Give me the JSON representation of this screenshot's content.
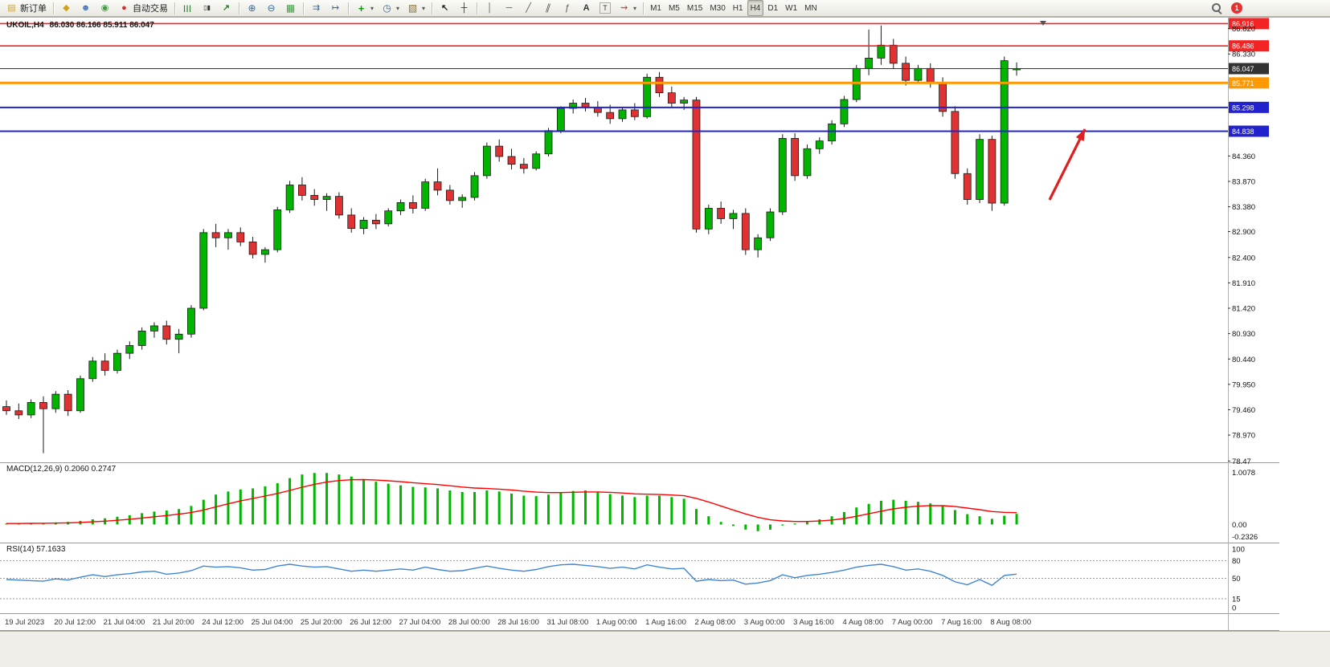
{
  "toolbar": {
    "groups": [
      {
        "items": [
          {
            "name": "new-order",
            "icon": "new-order-icon",
            "label": "新订单"
          }
        ]
      },
      {
        "items": [
          {
            "name": "charts-list",
            "icon": "gold-chart-icon"
          },
          {
            "name": "profiles",
            "icon": "profile-icon"
          },
          {
            "name": "connection",
            "icon": "signal-icon"
          },
          {
            "name": "auto-trading",
            "icon": "autotrade-icon",
            "label": "自动交易"
          }
        ]
      },
      {
        "items": [
          {
            "name": "bar-chart-mode",
            "icon": "bar-chart-icon"
          },
          {
            "name": "candle-chart-mode",
            "icon": "candle-chart-icon"
          },
          {
            "name": "line-chart-mode",
            "icon": "line-chart-icon"
          }
        ]
      },
      {
        "items": [
          {
            "name": "zoom-in",
            "icon": "zoom-in-icon"
          },
          {
            "name": "zoom-out",
            "icon": "zoom-out-icon"
          },
          {
            "name": "tile-windows",
            "icon": "tile-windows-icon"
          }
        ]
      },
      {
        "items": [
          {
            "name": "auto-scroll",
            "icon": "auto-scroll-icon"
          },
          {
            "name": "chart-shift",
            "icon": "chart-shift-icon"
          }
        ]
      },
      {
        "items": [
          {
            "name": "indicators",
            "icon": "indicators-icon",
            "dropdown": true
          },
          {
            "name": "periods",
            "icon": "clock-icon",
            "dropdown": true
          },
          {
            "name": "templates",
            "icon": "template-icon",
            "dropdown": true
          }
        ]
      },
      {
        "items": [
          {
            "name": "cursor-tool",
            "icon": "cursor-icon"
          },
          {
            "name": "crosshair-tool",
            "icon": "crosshair-icon"
          }
        ]
      },
      {
        "items": [
          {
            "name": "vline-tool",
            "icon": "vline-icon"
          },
          {
            "name": "hline-tool",
            "icon": "hline-icon"
          },
          {
            "name": "trendline-tool",
            "icon": "trendline-icon"
          },
          {
            "name": "channel-tool",
            "icon": "channel-icon"
          },
          {
            "name": "fibo-tool",
            "icon": "fibo-icon"
          },
          {
            "name": "text-tool",
            "icon": "text-icon"
          },
          {
            "name": "label-tool",
            "icon": "label-icon"
          },
          {
            "name": "arrows-tool",
            "icon": "arrows-icon",
            "dropdown": true
          }
        ]
      },
      {
        "items": [
          {
            "name": "tf-M1",
            "label": "M1",
            "tf": true
          },
          {
            "name": "tf-M5",
            "label": "M5",
            "tf": true
          },
          {
            "name": "tf-M15",
            "label": "M15",
            "tf": true
          },
          {
            "name": "tf-M30",
            "label": "M30",
            "tf": true
          },
          {
            "name": "tf-H1",
            "label": "H1",
            "tf": true
          },
          {
            "name": "tf-H4",
            "label": "H4",
            "tf": true,
            "active": true
          },
          {
            "name": "tf-D1",
            "label": "D1",
            "tf": true
          },
          {
            "name": "tf-W1",
            "label": "W1",
            "tf": true
          },
          {
            "name": "tf-MN",
            "label": "MN",
            "tf": true
          }
        ]
      }
    ],
    "right": {
      "badge": "1"
    }
  },
  "chart_data": {
    "type": "candlestick",
    "symbol": "UKOIL",
    "timeframe": "H4",
    "symbol_label": "UKOIL,H4",
    "ohlc_label": "86.030 86.166 85.911 86.047",
    "bull_color": "#00b400",
    "bear_color": "#e03232",
    "wick_color": "#1a1a1a",
    "ylim": [
      78.46,
      87.0
    ],
    "bars_per_label": 4,
    "ohlc": [
      [
        79.52,
        79.64,
        79.36,
        79.44
      ],
      [
        79.44,
        79.58,
        79.28,
        79.36
      ],
      [
        79.36,
        79.66,
        79.3,
        79.6
      ],
      [
        79.6,
        79.72,
        78.62,
        79.48
      ],
      [
        79.48,
        79.82,
        79.4,
        79.76
      ],
      [
        79.76,
        79.84,
        79.34,
        79.44
      ],
      [
        79.44,
        80.12,
        79.4,
        80.06
      ],
      [
        80.06,
        80.48,
        80.0,
        80.4
      ],
      [
        80.4,
        80.55,
        80.12,
        80.22
      ],
      [
        80.22,
        80.62,
        80.16,
        80.55
      ],
      [
        80.55,
        80.78,
        80.44,
        80.7
      ],
      [
        80.7,
        81.05,
        80.62,
        80.98
      ],
      [
        80.98,
        81.15,
        80.85,
        81.08
      ],
      [
        81.08,
        81.18,
        80.72,
        80.82
      ],
      [
        80.82,
        81.02,
        80.55,
        80.92
      ],
      [
        80.92,
        81.48,
        80.85,
        81.42
      ],
      [
        81.42,
        82.95,
        81.38,
        82.88
      ],
      [
        82.88,
        83.05,
        82.6,
        82.78
      ],
      [
        82.78,
        82.95,
        82.55,
        82.88
      ],
      [
        82.88,
        82.98,
        82.62,
        82.7
      ],
      [
        82.7,
        82.8,
        82.38,
        82.46
      ],
      [
        82.46,
        82.6,
        82.3,
        82.55
      ],
      [
        82.55,
        83.38,
        82.5,
        83.32
      ],
      [
        83.32,
        83.88,
        83.26,
        83.8
      ],
      [
        83.8,
        83.95,
        83.5,
        83.6
      ],
      [
        83.6,
        83.72,
        83.4,
        83.52
      ],
      [
        83.52,
        83.64,
        83.3,
        83.58
      ],
      [
        83.58,
        83.66,
        83.15,
        83.22
      ],
      [
        83.22,
        83.35,
        82.88,
        82.96
      ],
      [
        82.96,
        83.18,
        82.85,
        83.12
      ],
      [
        83.12,
        83.24,
        82.95,
        83.05
      ],
      [
        83.05,
        83.35,
        83.0,
        83.3
      ],
      [
        83.3,
        83.52,
        83.22,
        83.46
      ],
      [
        83.46,
        83.6,
        83.25,
        83.35
      ],
      [
        83.35,
        83.92,
        83.3,
        83.86
      ],
      [
        83.86,
        84.12,
        83.6,
        83.7
      ],
      [
        83.7,
        83.8,
        83.42,
        83.5
      ],
      [
        83.5,
        83.62,
        83.36,
        83.56
      ],
      [
        83.56,
        84.05,
        83.5,
        83.98
      ],
      [
        83.98,
        84.62,
        83.92,
        84.55
      ],
      [
        84.55,
        84.68,
        84.25,
        84.35
      ],
      [
        84.35,
        84.5,
        84.1,
        84.2
      ],
      [
        84.2,
        84.32,
        84.02,
        84.12
      ],
      [
        84.12,
        84.45,
        84.08,
        84.4
      ],
      [
        84.4,
        84.9,
        84.35,
        84.85
      ],
      [
        84.85,
        85.32,
        84.8,
        85.28
      ],
      [
        85.28,
        85.45,
        85.18,
        85.38
      ],
      [
        85.38,
        85.48,
        85.22,
        85.3
      ],
      [
        85.3,
        85.42,
        85.12,
        85.2
      ],
      [
        85.2,
        85.35,
        84.98,
        85.08
      ],
      [
        85.08,
        85.3,
        85.02,
        85.25
      ],
      [
        85.25,
        85.38,
        85.05,
        85.12
      ],
      [
        85.12,
        85.95,
        85.08,
        85.88
      ],
      [
        85.88,
        85.98,
        85.5,
        85.58
      ],
      [
        85.58,
        85.7,
        85.3,
        85.38
      ],
      [
        85.38,
        85.5,
        85.25,
        85.44
      ],
      [
        85.44,
        85.5,
        82.88,
        82.95
      ],
      [
        82.95,
        83.42,
        82.85,
        83.35
      ],
      [
        83.35,
        83.48,
        83.05,
        83.15
      ],
      [
        83.15,
        83.32,
        82.95,
        83.25
      ],
      [
        83.25,
        83.35,
        82.45,
        82.55
      ],
      [
        82.55,
        82.85,
        82.4,
        82.78
      ],
      [
        82.78,
        83.35,
        82.72,
        83.28
      ],
      [
        83.28,
        84.78,
        83.22,
        84.7
      ],
      [
        84.7,
        84.8,
        83.88,
        83.98
      ],
      [
        83.98,
        84.58,
        83.92,
        84.5
      ],
      [
        84.5,
        84.72,
        84.4,
        84.65
      ],
      [
        84.65,
        85.05,
        84.58,
        84.98
      ],
      [
        84.98,
        85.52,
        84.92,
        85.45
      ],
      [
        85.45,
        86.12,
        85.4,
        86.05
      ],
      [
        86.05,
        86.8,
        85.92,
        86.25
      ],
      [
        86.25,
        86.88,
        86.12,
        86.5
      ],
      [
        86.5,
        86.62,
        86.05,
        86.15
      ],
      [
        86.15,
        86.28,
        85.72,
        85.82
      ],
      [
        85.82,
        86.12,
        85.76,
        86.05
      ],
      [
        86.05,
        86.15,
        85.68,
        85.78
      ],
      [
        85.78,
        85.88,
        85.12,
        85.22
      ],
      [
        85.22,
        85.32,
        83.92,
        84.02
      ],
      [
        84.02,
        84.12,
        83.42,
        83.52
      ],
      [
        83.52,
        84.78,
        83.45,
        84.68
      ],
      [
        84.68,
        84.75,
        83.3,
        83.45
      ],
      [
        83.45,
        86.28,
        83.4,
        86.2
      ],
      [
        86.03,
        86.166,
        85.911,
        86.047
      ]
    ],
    "time_labels": [
      "19 Jul 2023",
      "20 Jul 12:00",
      "21 Jul 04:00",
      "21 Jul 20:00",
      "24 Jul 12:00",
      "25 Jul 04:00",
      "25 Jul 20:00",
      "26 Jul 12:00",
      "27 Jul 04:00",
      "28 Jul 00:00",
      "28 Jul 16:00",
      "31 Jul 08:00",
      "1 Aug 00:00",
      "1 Aug 16:00",
      "2 Aug 08:00",
      "3 Aug 00:00",
      "3 Aug 16:00",
      "4 Aug 08:00",
      "7 Aug 00:00",
      "7 Aug 16:00",
      "8 Aug 08:00"
    ],
    "price_axis_ticks": [
      "86.820",
      "86.330",
      "84.360",
      "83.870",
      "83.380",
      "82.900",
      "82.400",
      "81.910",
      "81.420",
      "80.930",
      "80.440",
      "79.950",
      "79.460",
      "78.970",
      "78.47"
    ],
    "horizontal_lines": [
      {
        "price": 86.916,
        "label": "86.916",
        "color": "#f42424",
        "stroke_width": 1.6
      },
      {
        "price": 86.486,
        "label": "86.486",
        "color": "#f42424",
        "stroke_width": 1.6
      },
      {
        "price": 86.047,
        "label": "86.047",
        "color": "#333333",
        "stroke_width": 1,
        "role": "current-price"
      },
      {
        "price": 85.771,
        "label": "85.771",
        "color": "#ff9900",
        "stroke_width": 3
      },
      {
        "price": 85.298,
        "label": "85.298",
        "color": "#2222cc",
        "stroke_width": 2
      },
      {
        "price": 84.838,
        "label": "84.838",
        "color": "#2222cc",
        "stroke_width": 2
      }
    ],
    "annotation_arrow": {
      "from": [
        1306,
        228
      ],
      "to": [
        1350,
        140
      ],
      "color": "#e02020"
    },
    "indicators": [
      {
        "name": "MACD",
        "params": "12,26,9",
        "label": "MACD(12,26,9) 0.2060 0.2747",
        "type": "histogram+signal",
        "histogram_color": "#00b400",
        "signal_color": "#ff0000",
        "signal_period": 9,
        "axis_labels": [
          "1.0078",
          "0.00",
          "-0.2326"
        ],
        "ylim": [
          -0.32,
          1.19
        ],
        "values": [
          0.02,
          0.02,
          0.03,
          0.03,
          0.04,
          0.05,
          0.07,
          0.1,
          0.12,
          0.15,
          0.18,
          0.22,
          0.25,
          0.27,
          0.3,
          0.36,
          0.48,
          0.58,
          0.64,
          0.68,
          0.7,
          0.74,
          0.8,
          0.9,
          0.97,
          1.0,
          1.0,
          0.97,
          0.93,
          0.88,
          0.83,
          0.79,
          0.76,
          0.73,
          0.72,
          0.7,
          0.66,
          0.63,
          0.63,
          0.66,
          0.64,
          0.6,
          0.56,
          0.55,
          0.58,
          0.62,
          0.65,
          0.66,
          0.63,
          0.59,
          0.56,
          0.53,
          0.56,
          0.56,
          0.53,
          0.5,
          0.3,
          0.16,
          0.05,
          -0.03,
          -0.1,
          -0.13,
          -0.1,
          -0.02,
          0.02,
          0.06,
          0.1,
          0.16,
          0.24,
          0.33,
          0.4,
          0.46,
          0.48,
          0.46,
          0.44,
          0.41,
          0.36,
          0.28,
          0.2,
          0.16,
          0.11,
          0.17,
          0.206
        ]
      },
      {
        "name": "RSI",
        "params": "14",
        "label": "RSI(14) 57.1633",
        "type": "line",
        "line_color": "#3f85d6",
        "levels": [
          80,
          50,
          15
        ],
        "axis_labels": [
          "100",
          "80",
          "50",
          "15",
          "0"
        ],
        "ylim": [
          0,
          100
        ],
        "values": [
          48,
          47,
          46,
          45,
          49,
          47,
          52,
          56,
          53,
          56,
          58,
          61,
          62,
          57,
          59,
          63,
          71,
          69,
          70,
          68,
          64,
          65,
          71,
          74,
          71,
          69,
          70,
          66,
          62,
          64,
          62,
          64,
          66,
          64,
          69,
          65,
          62,
          63,
          67,
          71,
          67,
          64,
          62,
          65,
          70,
          73,
          74,
          72,
          70,
          67,
          69,
          66,
          73,
          69,
          66,
          67,
          45,
          48,
          46,
          47,
          40,
          42,
          46,
          56,
          51,
          55,
          57,
          60,
          64,
          69,
          72,
          74,
          70,
          64,
          66,
          62,
          55,
          44,
          39,
          48,
          38,
          55,
          57.16
        ]
      }
    ]
  }
}
